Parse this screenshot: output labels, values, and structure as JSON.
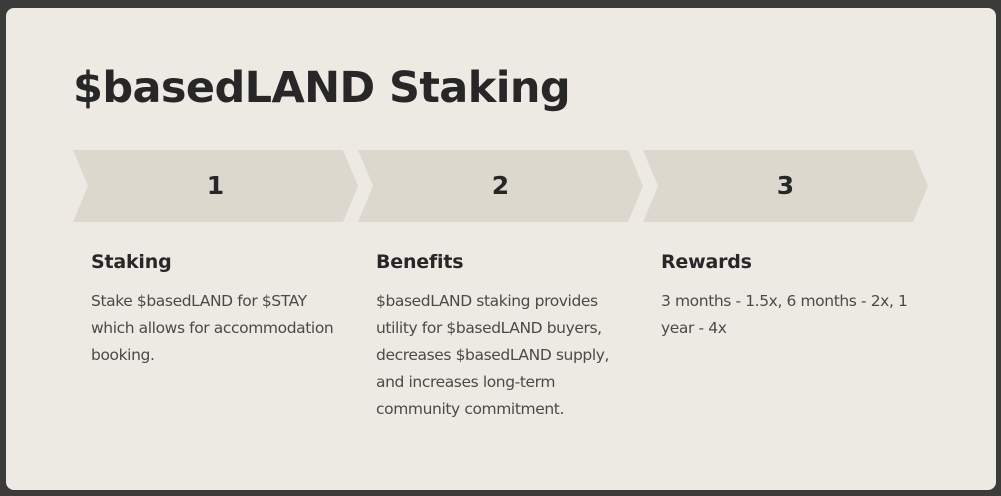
{
  "page": {
    "title": "$basedLAND Staking"
  },
  "steps": [
    {
      "number": "1",
      "heading": "Staking",
      "text": "Stake $basedLAND for $STAY which allows for accommodation booking."
    },
    {
      "number": "2",
      "heading": "Benefits",
      "text": "$basedLAND staking provides utility for $basedLAND buyers, decreases $basedLAND supply, and increases long-term community commitment."
    },
    {
      "number": "3",
      "heading": "Rewards",
      "text": "3 months - 1.5x, 6 months - 2x, 1 year - 4x"
    }
  ],
  "colors": {
    "background": "#edeae4",
    "frame": "#3b3b39",
    "chevron": "#ddd8ce",
    "heading": "#272727",
    "body_text": "#4a4a48"
  }
}
